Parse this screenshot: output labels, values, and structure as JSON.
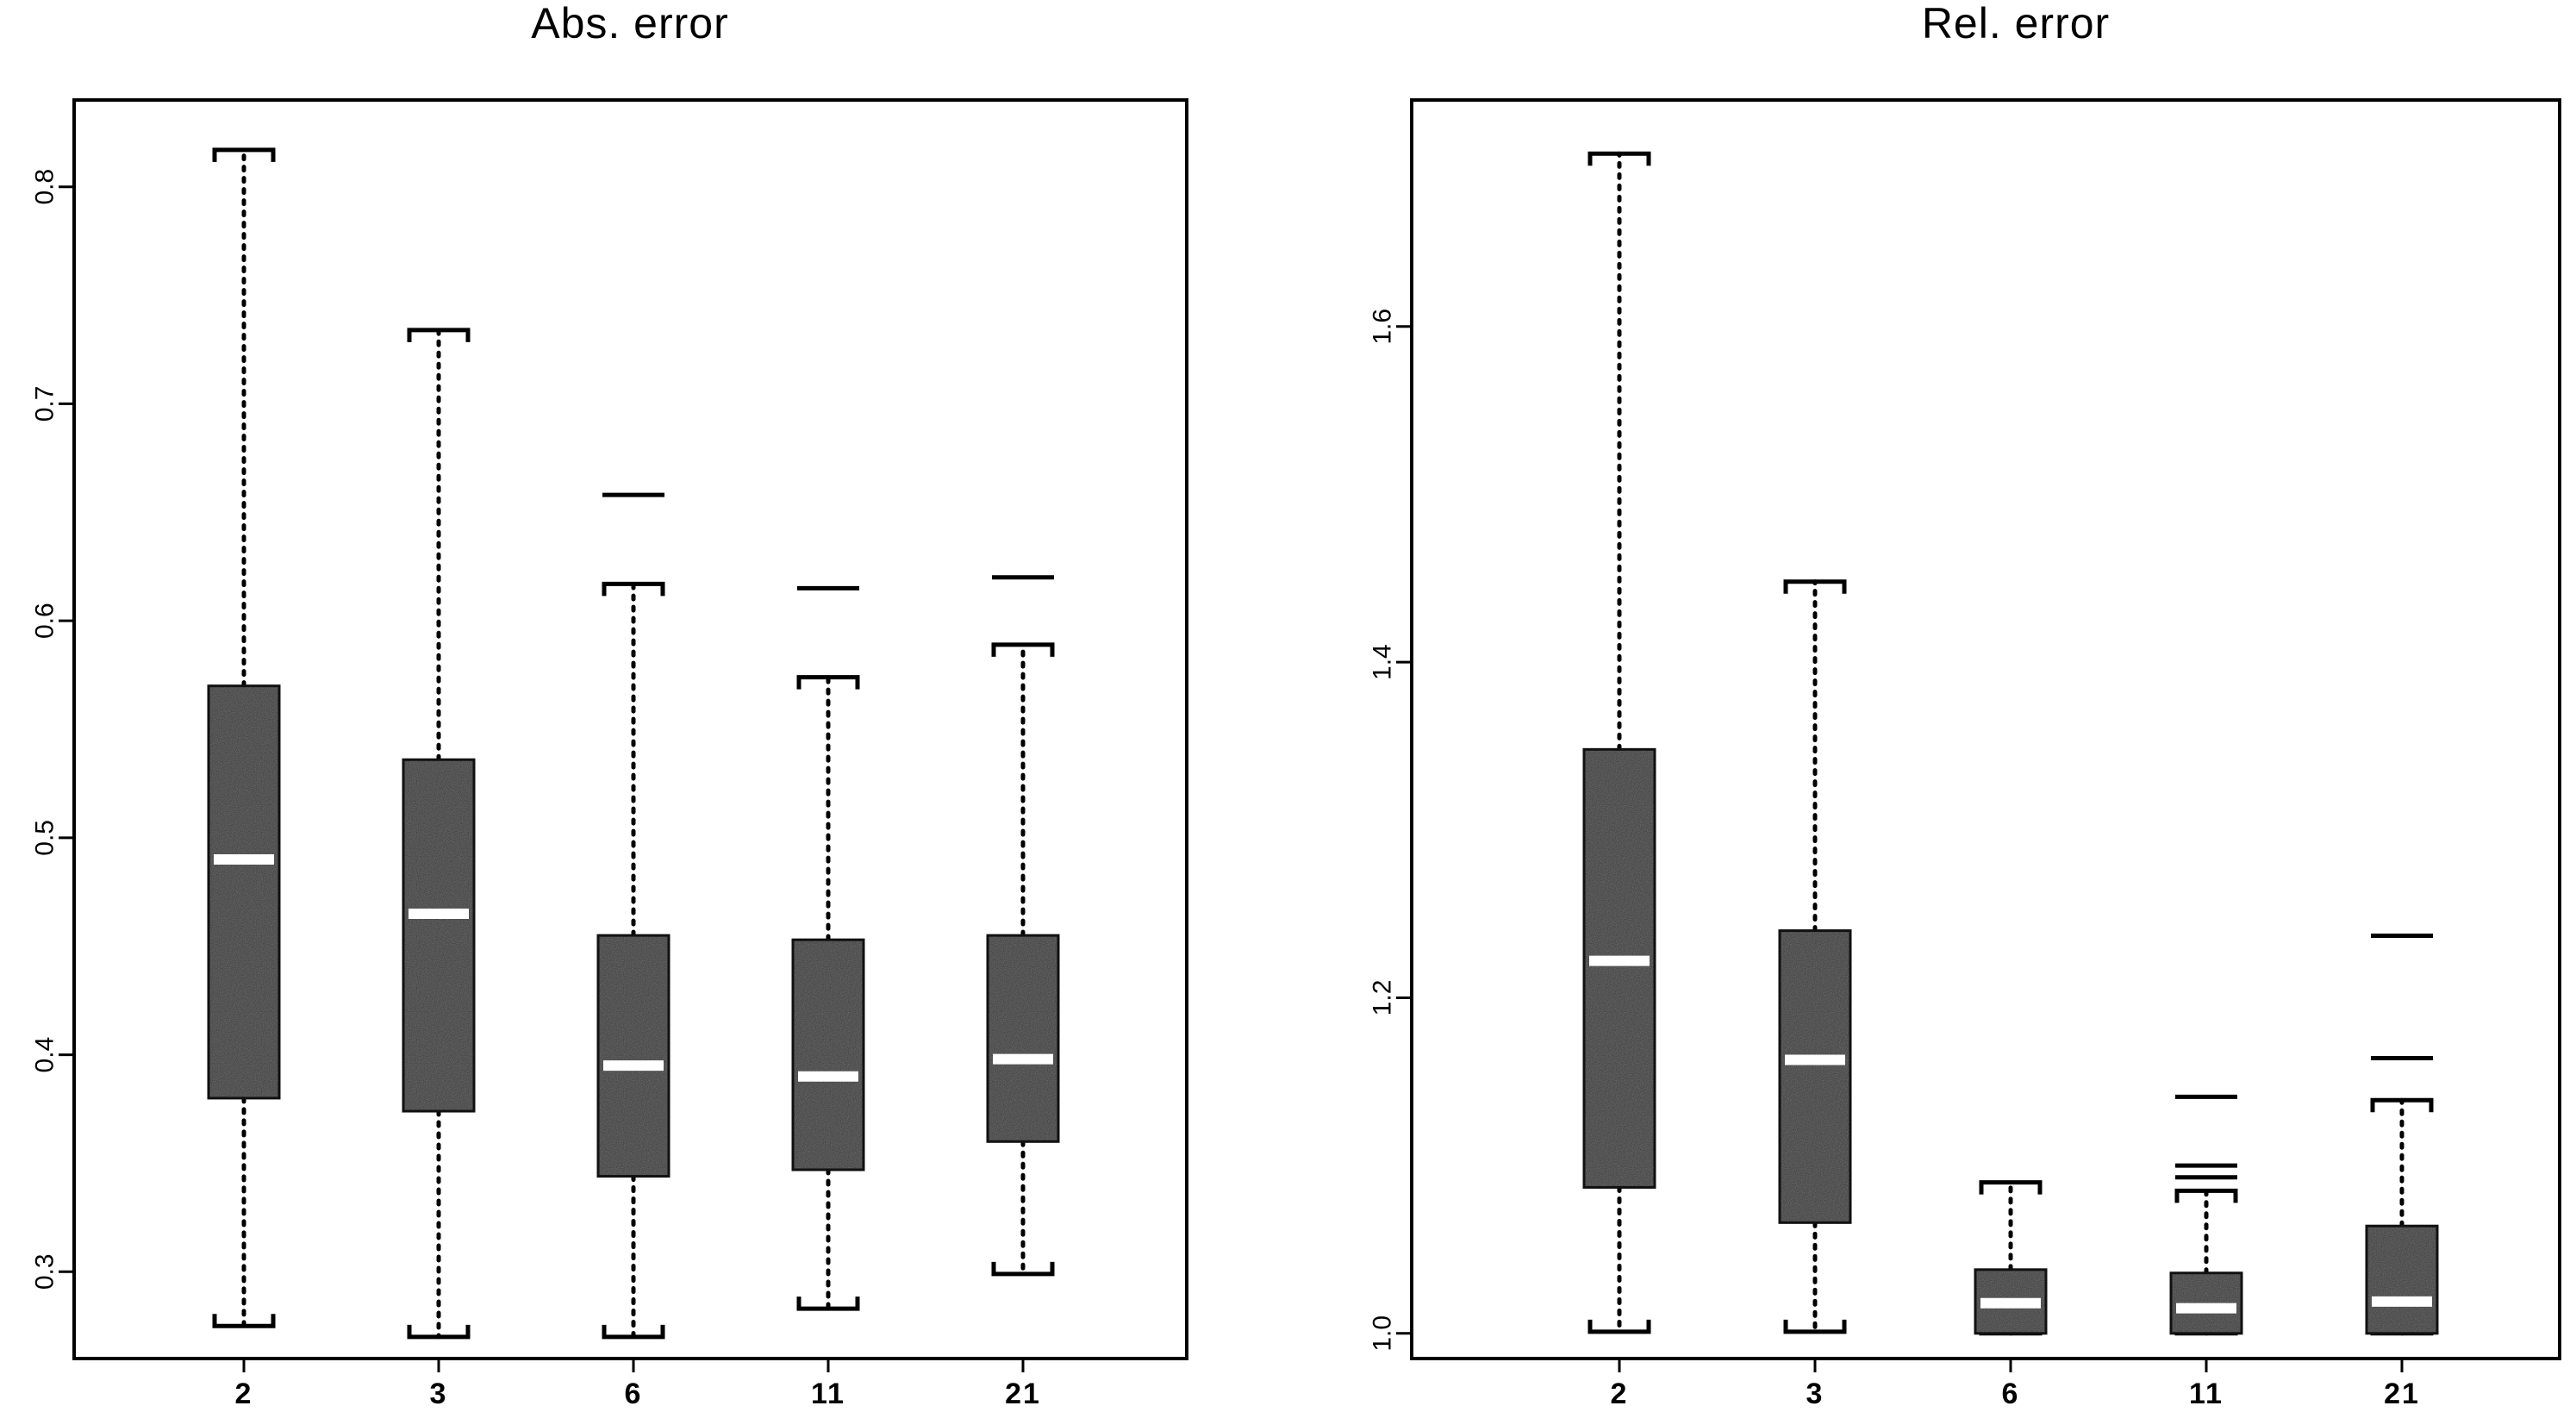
{
  "chart_data": [
    {
      "type": "boxplot",
      "title": "Abs. error",
      "xlabel": "",
      "ylabel": "",
      "ylim": [
        0.26,
        0.84
      ],
      "yticks": [
        0.3,
        0.4,
        0.5,
        0.6,
        0.7,
        0.8
      ],
      "ytick_labels": [
        "0.3",
        "0.4",
        "0.5",
        "0.6",
        "0.7",
        "0.8"
      ],
      "categories": [
        "2",
        "3",
        "6",
        "11",
        "21"
      ],
      "boxes": [
        {
          "category": "2",
          "whisker_low": 0.275,
          "q1": 0.38,
          "median": 0.49,
          "q3": 0.57,
          "whisker_high": 0.817,
          "outliers": []
        },
        {
          "category": "3",
          "whisker_low": 0.27,
          "q1": 0.374,
          "median": 0.465,
          "q3": 0.536,
          "whisker_high": 0.734,
          "outliers": []
        },
        {
          "category": "6",
          "whisker_low": 0.27,
          "q1": 0.344,
          "median": 0.395,
          "q3": 0.455,
          "whisker_high": 0.617,
          "outliers": [
            0.658
          ]
        },
        {
          "category": "11",
          "whisker_low": 0.283,
          "q1": 0.347,
          "median": 0.39,
          "q3": 0.453,
          "whisker_high": 0.574,
          "outliers": [
            0.615
          ]
        },
        {
          "category": "21",
          "whisker_low": 0.299,
          "q1": 0.36,
          "median": 0.398,
          "q3": 0.455,
          "whisker_high": 0.589,
          "outliers": [
            0.62
          ]
        }
      ],
      "grid": false,
      "box_color": "#3a3a3a",
      "median_color": "#ffffff"
    },
    {
      "type": "boxplot",
      "title": "Rel. error",
      "xlabel": "",
      "ylabel": "",
      "ylim": [
        0.985,
        1.735
      ],
      "yticks": [
        1.0,
        1.2,
        1.4,
        1.6
      ],
      "ytick_labels": [
        "1.0",
        "1.2",
        "1.4",
        "1.6"
      ],
      "categories": [
        "2",
        "3",
        "6",
        "11",
        "21"
      ],
      "boxes": [
        {
          "category": "2",
          "whisker_low": 1.001,
          "q1": 1.087,
          "median": 1.222,
          "q3": 1.348,
          "whisker_high": 1.703,
          "outliers": []
        },
        {
          "category": "3",
          "whisker_low": 1.001,
          "q1": 1.066,
          "median": 1.163,
          "q3": 1.24,
          "whisker_high": 1.448,
          "outliers": []
        },
        {
          "category": "6",
          "whisker_low": 1.0,
          "q1": 1.0,
          "median": 1.018,
          "q3": 1.038,
          "whisker_high": 1.09,
          "outliers": []
        },
        {
          "category": "11",
          "whisker_low": 1.0,
          "q1": 1.0,
          "median": 1.015,
          "q3": 1.036,
          "whisker_high": 1.085,
          "outliers": [
            1.093,
            1.1,
            1.141
          ]
        },
        {
          "category": "21",
          "whisker_low": 1.0,
          "q1": 1.0,
          "median": 1.019,
          "q3": 1.064,
          "whisker_high": 1.139,
          "outliers": [
            1.164,
            1.237
          ]
        }
      ],
      "grid": false,
      "box_color": "#3a3a3a",
      "median_color": "#ffffff"
    }
  ]
}
